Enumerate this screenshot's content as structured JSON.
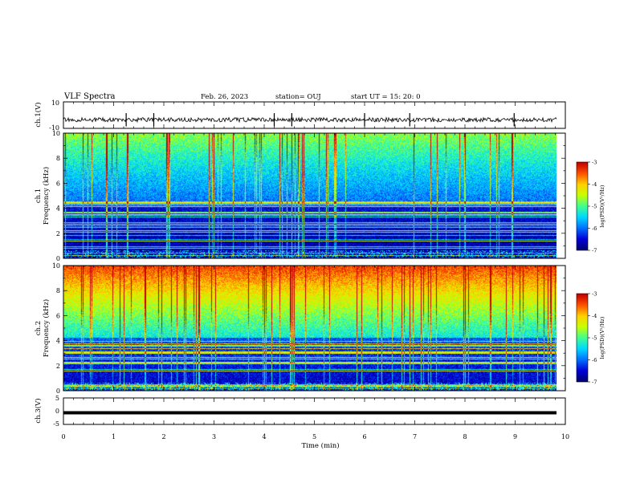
{
  "header": {
    "title": "VLF Spectra",
    "date": "Feb. 26, 2023",
    "station": "station= OUJ",
    "start": "start  UT =   15: 20: 0"
  },
  "chart_data": [
    {
      "type": "line",
      "name": "ch1-waveform",
      "ylabel": "ch.1(V)",
      "ylim": [
        -10,
        10
      ],
      "yticks": [
        "10",
        "-10"
      ],
      "xlim": [
        0,
        10
      ],
      "baseline": -3.5,
      "spike_times_min": [
        1.25,
        1.8,
        4.2,
        4.55,
        6.0,
        6.9,
        8.98
      ]
    },
    {
      "type": "heatmap",
      "name": "ch1-spectrogram",
      "ylabel_line1": "ch.1",
      "ylabel_line2": "Frequency (kHz)",
      "ylim": [
        0,
        10
      ],
      "yticks": [
        "10",
        "8",
        "6",
        "4",
        "2",
        "0"
      ],
      "xlim": [
        0,
        10
      ],
      "colorbar": {
        "label": "log(PSD)(V²/Hz)",
        "range": [
          -7,
          -3
        ],
        "ticks": [
          "-3",
          "-4",
          "-5",
          "-6",
          "-7"
        ]
      }
    },
    {
      "type": "heatmap",
      "name": "ch2-spectrogram",
      "ylabel_line1": "ch.2",
      "ylabel_line2": "Frequency (kHz)",
      "ylim": [
        0,
        10
      ],
      "yticks": [
        "10",
        "8",
        "6",
        "4",
        "2",
        "0"
      ],
      "xlim": [
        0,
        10
      ],
      "colorbar": {
        "label": "log(PSD)(V²/Hz)",
        "range": [
          -7,
          -3
        ],
        "ticks": [
          "-3",
          "-4",
          "-5",
          "-6",
          "-7"
        ]
      }
    },
    {
      "type": "line",
      "name": "ch3-waveform",
      "ylabel": "ch.3(V)",
      "ylim": [
        -5,
        5
      ],
      "yticks": [
        "5",
        "0",
        "-5"
      ],
      "xlim": [
        0,
        10
      ],
      "baseline": -0.6
    }
  ],
  "xaxis": {
    "label": "Time (min)",
    "ticks": [
      "0",
      "1",
      "2",
      "3",
      "4",
      "5",
      "6",
      "7",
      "8",
      "9",
      "10"
    ]
  },
  "colors": {
    "colormap": [
      "#000070",
      "#0000d8",
      "#0070ff",
      "#00d8ff",
      "#40ff90",
      "#c8ff00",
      "#ffd000",
      "#ff5000",
      "#c00000"
    ]
  }
}
